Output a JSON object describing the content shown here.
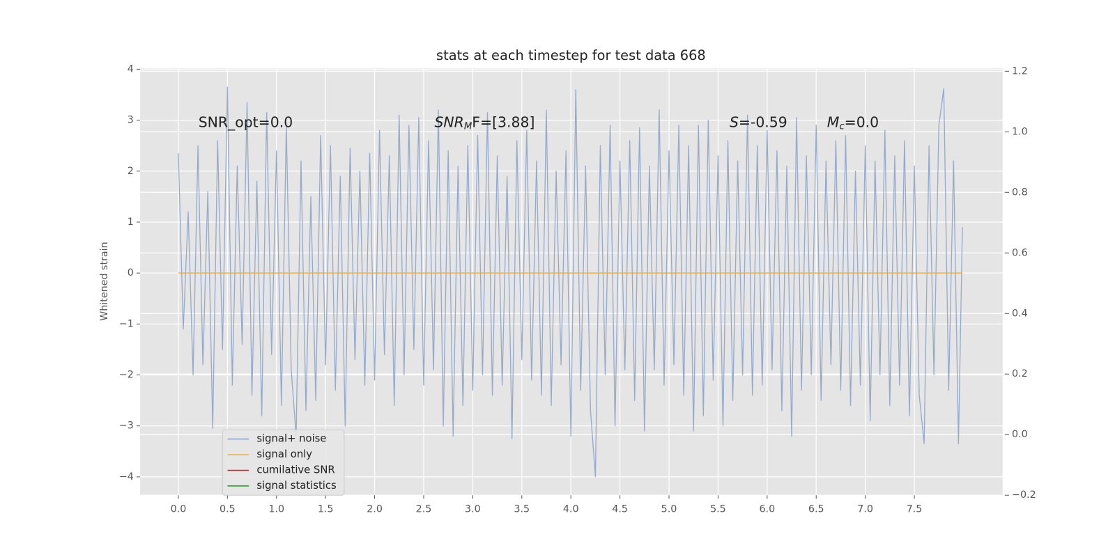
{
  "chart_data": {
    "type": "line",
    "title": "stats at each timestep for test data 668",
    "ylabel": "Whitened strain",
    "annotations": [
      {
        "text": "SNR_opt=0.0"
      },
      {
        "base": "SNR",
        "sub": "M",
        "tail": "F=[3.88]"
      },
      {
        "base": "S",
        "tail": "=-0.59"
      },
      {
        "base": "M",
        "sub": "c",
        "tail": "=0.0"
      }
    ],
    "xlim": [
      -0.39,
      8.4
    ],
    "ylim": [
      -4.36,
      4.02
    ],
    "y2lim": [
      -0.2,
      1.21
    ],
    "xticks": [
      {
        "value": 0,
        "label": "0.0"
      },
      0.5,
      {
        "value": 1,
        "label": "1.0"
      },
      1.5,
      {
        "value": 2,
        "label": "2.0"
      },
      2.5,
      {
        "value": 3,
        "label": "3.0"
      },
      3.5,
      {
        "value": 4,
        "label": "4.0"
      },
      4.5,
      {
        "value": 5,
        "label": "5.0"
      },
      5.5,
      {
        "value": 6,
        "label": "6.0"
      },
      6.5,
      {
        "value": 7,
        "label": "7.0"
      },
      7.5
    ],
    "yticks": [
      {
        "value": -4,
        "label": "−4"
      },
      {
        "value": -3,
        "label": "−3"
      },
      {
        "value": -2,
        "label": "−2"
      },
      {
        "value": -1,
        "label": "−1"
      },
      0,
      1,
      2,
      3,
      4
    ],
    "y2ticks": [
      {
        "value": -0.2,
        "label": "−0.2"
      },
      {
        "value": 0,
        "label": "0.0"
      },
      0.2,
      0.4,
      0.6,
      0.8,
      {
        "value": 1,
        "label": "1.0"
      },
      1.2
    ],
    "grid": true,
    "legend": "lower left",
    "series": [
      {
        "name": "signal+ noise",
        "color": "#8da3c9",
        "x": [
          0,
          0.05,
          0.1,
          0.15,
          0.2,
          0.25,
          0.3,
          0.35,
          0.4,
          0.45,
          0.5,
          0.55,
          0.6,
          0.65,
          0.7,
          0.75,
          0.8,
          0.85,
          0.9,
          0.95,
          1,
          1.05,
          1.1,
          1.15,
          1.2,
          1.25,
          1.3,
          1.35,
          1.4,
          1.45,
          1.5,
          1.55,
          1.6,
          1.65,
          1.7,
          1.75,
          1.8,
          1.85,
          1.9,
          1.95,
          2,
          2.05,
          2.1,
          2.15,
          2.2,
          2.25,
          2.3,
          2.35,
          2.4,
          2.45,
          2.5,
          2.55,
          2.6,
          2.65,
          2.7,
          2.75,
          2.8,
          2.85,
          2.9,
          2.95,
          3,
          3.05,
          3.1,
          3.15,
          3.2,
          3.25,
          3.3,
          3.35,
          3.4,
          3.45,
          3.5,
          3.55,
          3.6,
          3.65,
          3.7,
          3.75,
          3.8,
          3.85,
          3.9,
          3.95,
          4,
          4.05,
          4.1,
          4.15,
          4.2,
          4.25,
          4.3,
          4.35,
          4.4,
          4.45,
          4.5,
          4.55,
          4.6,
          4.65,
          4.7,
          4.75,
          4.8,
          4.85,
          4.9,
          4.95,
          5,
          5.05,
          5.1,
          5.15,
          5.2,
          5.25,
          5.3,
          5.35,
          5.4,
          5.45,
          5.5,
          5.55,
          5.6,
          5.65,
          5.7,
          5.75,
          5.8,
          5.85,
          5.9,
          5.95,
          6,
          6.05,
          6.1,
          6.15,
          6.2,
          6.25,
          6.3,
          6.35,
          6.4,
          6.45,
          6.5,
          6.55,
          6.6,
          6.65,
          6.7,
          6.75,
          6.8,
          6.85,
          6.9,
          6.95,
          7,
          7.05,
          7.1,
          7.15,
          7.2,
          7.25,
          7.3,
          7.35,
          7.4,
          7.45,
          7.5,
          7.55,
          7.6,
          7.65,
          7.7,
          7.75,
          7.8,
          7.85,
          7.9,
          7.95,
          7.99
        ],
        "values": [
          2.35,
          -1.1,
          1.2,
          -2.0,
          2.5,
          -1.8,
          1.6,
          -3.05,
          2.6,
          -1.5,
          3.65,
          -2.2,
          2.1,
          -1.4,
          3.35,
          -2.4,
          1.8,
          -2.8,
          3.15,
          -1.6,
          2.4,
          -2.6,
          2.9,
          -1.9,
          -3.2,
          2.2,
          -2.7,
          1.5,
          -2.5,
          2.7,
          -1.8,
          2.5,
          -2.3,
          1.9,
          -3.0,
          2.45,
          -1.7,
          2.0,
          -2.2,
          2.35,
          -2.1,
          2.8,
          -1.6,
          2.3,
          -2.6,
          3.1,
          -2.0,
          2.9,
          -1.5,
          3.05,
          -2.2,
          2.6,
          -1.9,
          3.2,
          -3.0,
          2.4,
          -3.2,
          2.1,
          -2.6,
          2.5,
          -2.3,
          2.7,
          -2.0,
          3.15,
          -2.4,
          2.3,
          -2.2,
          1.9,
          -3.25,
          2.6,
          -1.7,
          2.8,
          -2.1,
          2.2,
          -2.4,
          3.2,
          -2.6,
          2.0,
          -1.8,
          2.4,
          -3.2,
          3.6,
          -2.3,
          2.1,
          -2.7,
          -4.0,
          2.5,
          -2.0,
          2.9,
          -3.0,
          2.2,
          -1.9,
          2.6,
          -2.5,
          2.85,
          -3.1,
          2.1,
          -1.9,
          3.2,
          -2.2,
          2.4,
          -1.8,
          2.9,
          -2.4,
          2.5,
          -3.1,
          2.9,
          -2.8,
          3.0,
          -2.1,
          2.3,
          -3.0,
          2.6,
          -2.5,
          2.2,
          -2.0,
          3.1,
          -2.4,
          2.5,
          -2.2,
          2.8,
          -1.9,
          2.4,
          -2.7,
          2.1,
          -3.2,
          3.05,
          -2.3,
          2.3,
          -2.0,
          2.9,
          -2.5,
          2.2,
          -1.8,
          2.6,
          -2.3,
          2.7,
          -2.6,
          2.0,
          -2.2,
          2.5,
          -2.9,
          2.2,
          -2.0,
          2.8,
          -2.6,
          2.3,
          -2.2,
          2.6,
          -2.8,
          2.1,
          -2.4,
          -3.35,
          2.5,
          -2.0,
          2.9,
          3.62,
          -2.3,
          2.2,
          -3.35,
          0.9
        ]
      },
      {
        "name": "signal only",
        "color": "#e8b04e",
        "x": [
          0,
          7.99
        ],
        "values": [
          0,
          0
        ]
      },
      {
        "name": "cumilative SNR",
        "color": "#d62728",
        "axis": "y2",
        "x": [],
        "values": []
      },
      {
        "name": "signal statistics",
        "color": "#2ca02c",
        "axis": "y2",
        "x": [],
        "values": []
      }
    ]
  }
}
